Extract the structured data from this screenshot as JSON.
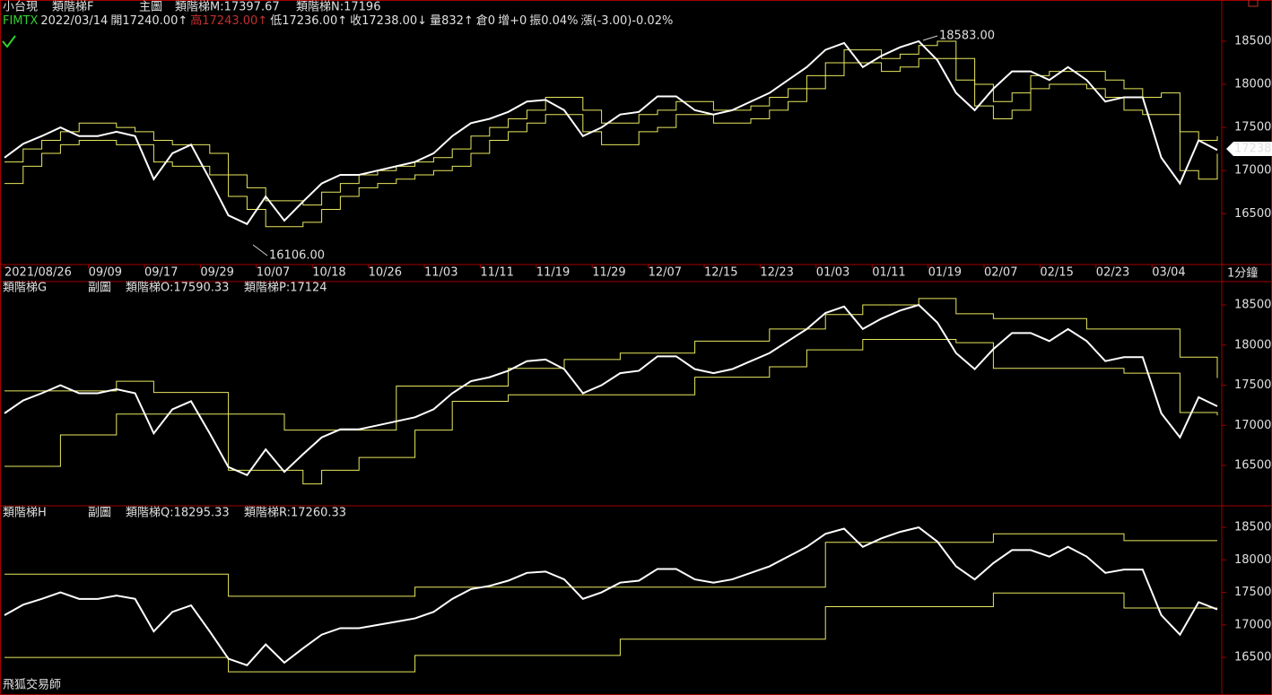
{
  "header": {
    "symbol": "小台現",
    "quote": [
      "FIMTX",
      "2022/03/14",
      "開17240.00↑",
      "高17243.00↑",
      "低17236.00↑",
      "收17238.00↓",
      "量832↑",
      "倉0",
      "增+0",
      "振0.04%",
      "漲(-3.00)-0.02%"
    ],
    "interval": "1分鐘",
    "footer": "飛狐交易師"
  },
  "chart_data": [
    {
      "type": "line",
      "title": "類階梯F",
      "subtitle": "主圖",
      "x": [
        0,
        2,
        4,
        6,
        8,
        10,
        12,
        14,
        16,
        18,
        20,
        22,
        24,
        26,
        28,
        30,
        32,
        34,
        36,
        38,
        40,
        42,
        44,
        46,
        48,
        50,
        52,
        54,
        56,
        58,
        60,
        62,
        64,
        66,
        68,
        70,
        72,
        74,
        76,
        78,
        80,
        82,
        84,
        86,
        88,
        90,
        92,
        94,
        96,
        98,
        100,
        102,
        104,
        106,
        108,
        110,
        112,
        114,
        116,
        118,
        120,
        122,
        124,
        126,
        128,
        130
      ],
      "xlim": [
        0,
        130
      ],
      "xticks": [
        {
          "value": 0,
          "label": "2021/08/26"
        },
        {
          "value": 9,
          "label": "09/09"
        },
        {
          "value": 15,
          "label": "09/17"
        },
        {
          "value": 21,
          "label": "09/29"
        },
        {
          "value": 27,
          "label": "10/07"
        },
        {
          "value": 33,
          "label": "10/18"
        },
        {
          "value": 39,
          "label": "10/26"
        },
        {
          "value": 45,
          "label": "11/03"
        },
        {
          "value": 51,
          "label": "11/11"
        },
        {
          "value": 57,
          "label": "11/19"
        },
        {
          "value": 63,
          "label": "11/29"
        },
        {
          "value": 69,
          "label": "12/07"
        },
        {
          "value": 75,
          "label": "12/15"
        },
        {
          "value": 81,
          "label": "12/23"
        },
        {
          "value": 87,
          "label": "01/03"
        },
        {
          "value": 93,
          "label": "01/11"
        },
        {
          "value": 99,
          "label": "01/19"
        },
        {
          "value": 105,
          "label": "02/07"
        },
        {
          "value": 111,
          "label": "02/15"
        },
        {
          "value": 117,
          "label": "02/23"
        },
        {
          "value": 123,
          "label": "03/04"
        }
      ],
      "ylim": [
        15910,
        18770
      ],
      "yticks": [
        16500,
        17000,
        17500,
        18000,
        18500
      ],
      "color": "#ffffff",
      "values": [
        17150,
        17310,
        17400,
        17500,
        17400,
        17400,
        17450,
        17400,
        16900,
        17200,
        17300,
        16900,
        16480,
        16380,
        16700,
        16420,
        16640,
        16850,
        16950,
        16950,
        17000,
        17050,
        17100,
        17200,
        17400,
        17550,
        17600,
        17680,
        17800,
        17820,
        17700,
        17400,
        17500,
        17650,
        17680,
        17860,
        17860,
        17700,
        17650,
        17700,
        17800,
        17900,
        18050,
        18200,
        18400,
        18480,
        18200,
        18330,
        18430,
        18500,
        18280,
        17900,
        17700,
        17950,
        18150,
        18150,
        18050,
        18200,
        18050,
        17800,
        17850,
        17850,
        17150,
        16850,
        17350,
        17238
      ],
      "series": [
        {
          "name": "類階梯M:17397.67",
          "color": "#e8e860",
          "values": [
            17100,
            17250,
            17350,
            17450,
            17550,
            17550,
            17500,
            17450,
            17350,
            17300,
            17300,
            17200,
            16950,
            16800,
            16650,
            16650,
            16600,
            16750,
            16850,
            16950,
            17000,
            17050,
            17100,
            17150,
            17250,
            17400,
            17500,
            17600,
            17700,
            17850,
            17850,
            17700,
            17550,
            17550,
            17650,
            17700,
            17800,
            17800,
            17700,
            17700,
            17750,
            17850,
            17950,
            18100,
            18250,
            18400,
            18400,
            18300,
            18350,
            18450,
            18500,
            18300,
            18000,
            17800,
            17900,
            18100,
            18150,
            18150,
            18150,
            18050,
            17950,
            17850,
            17900,
            17450,
            17350,
            17397.67
          ]
        },
        {
          "name": "類階梯N:17196",
          "color": "#e8e860",
          "values": [
            16850,
            17050,
            17200,
            17300,
            17350,
            17350,
            17300,
            17300,
            17100,
            17050,
            17050,
            16950,
            16700,
            16550,
            16350,
            16350,
            16400,
            16550,
            16700,
            16800,
            16850,
            16900,
            16950,
            17000,
            17050,
            17200,
            17350,
            17450,
            17550,
            17650,
            17650,
            17450,
            17300,
            17300,
            17450,
            17500,
            17650,
            17650,
            17550,
            17550,
            17600,
            17700,
            17800,
            17950,
            18100,
            18250,
            18250,
            18150,
            18200,
            18300,
            18300,
            18050,
            17750,
            17600,
            17700,
            17950,
            18000,
            18000,
            17950,
            17850,
            17700,
            17650,
            17650,
            17000,
            16900,
            17196
          ]
        }
      ],
      "annotations": [
        "18583.00",
        "16106.00",
        "17238"
      ]
    },
    {
      "type": "line",
      "title": "類階梯G",
      "subtitle": "副圖",
      "ylim": [
        16020,
        18780
      ],
      "yticks": [
        16500,
        17000,
        17500,
        18000,
        18500
      ],
      "series": [
        {
          "name": "類階梯O:17590.33",
          "color": "#e8e860",
          "values": [
            17430,
            17430,
            17430,
            17430,
            17430,
            17430,
            17550,
            17550,
            17410,
            17410,
            17410,
            17410,
            17140,
            17140,
            17140,
            16940,
            16940,
            16940,
            16940,
            16940,
            16940,
            17490,
            17490,
            17490,
            17490,
            17490,
            17490,
            17710,
            17710,
            17710,
            17820,
            17820,
            17820,
            17900,
            17900,
            17900,
            17900,
            18050,
            18050,
            18050,
            18050,
            18200,
            18200,
            18200,
            18380,
            18380,
            18500,
            18500,
            18500,
            18580,
            18580,
            18390,
            18390,
            18330,
            18330,
            18330,
            18330,
            18330,
            18200,
            18200,
            18200,
            18200,
            18200,
            17850,
            17850,
            17590.33
          ]
        },
        {
          "name": "類階梯P:17124",
          "color": "#e8e860",
          "values": [
            16490,
            16490,
            16490,
            16880,
            16880,
            16880,
            17140,
            17140,
            17140,
            17140,
            17140,
            17140,
            16440,
            16440,
            16440,
            16440,
            16270,
            16440,
            16440,
            16600,
            16600,
            16600,
            16940,
            16940,
            17300,
            17300,
            17300,
            17380,
            17380,
            17380,
            17380,
            17380,
            17380,
            17380,
            17380,
            17380,
            17380,
            17600,
            17600,
            17600,
            17600,
            17730,
            17730,
            17940,
            17940,
            17940,
            18070,
            18070,
            18070,
            18070,
            18070,
            18030,
            18030,
            17710,
            17710,
            17710,
            17710,
            17710,
            17710,
            17710,
            17650,
            17650,
            17650,
            17160,
            17160,
            17124
          ]
        }
      ]
    },
    {
      "type": "line",
      "title": "類階梯H",
      "subtitle": "副圖",
      "ylim": [
        15950,
        18790
      ],
      "yticks": [
        16500,
        17000,
        17500,
        18000,
        18500
      ],
      "series": [
        {
          "name": "類階梯Q:18295.33",
          "color": "#e8e860",
          "values": [
            17780,
            17780,
            17780,
            17780,
            17780,
            17780,
            17780,
            17780,
            17780,
            17780,
            17780,
            17780,
            17440,
            17440,
            17440,
            17440,
            17440,
            17440,
            17440,
            17440,
            17440,
            17440,
            17580,
            17580,
            17580,
            17580,
            17580,
            17580,
            17580,
            17580,
            17580,
            17580,
            17580,
            17580,
            17580,
            17580,
            17580,
            17580,
            17580,
            17580,
            17580,
            17580,
            17580,
            17580,
            18270,
            18270,
            18270,
            18270,
            18270,
            18270,
            18270,
            18270,
            18270,
            18400,
            18400,
            18400,
            18400,
            18400,
            18400,
            18400,
            18295.33,
            18295.33,
            18295.33,
            18295.33,
            18295.33,
            18295.33
          ]
        },
        {
          "name": "類階梯R:17260.33",
          "color": "#e8e860",
          "values": [
            16500,
            16500,
            16500,
            16500,
            16500,
            16500,
            16500,
            16500,
            16500,
            16500,
            16500,
            16500,
            16280,
            16280,
            16280,
            16280,
            16280,
            16280,
            16280,
            16280,
            16280,
            16280,
            16530,
            16530,
            16530,
            16530,
            16530,
            16530,
            16530,
            16530,
            16530,
            16530,
            16530,
            16780,
            16780,
            16780,
            16780,
            16780,
            16780,
            16780,
            16780,
            16780,
            16780,
            16780,
            17280,
            17280,
            17280,
            17280,
            17280,
            17280,
            17280,
            17280,
            17280,
            17490,
            17490,
            17490,
            17490,
            17490,
            17490,
            17490,
            17260.33,
            17260.33,
            17260.33,
            17260.33,
            17260.33,
            17260.33
          ]
        }
      ]
    }
  ]
}
